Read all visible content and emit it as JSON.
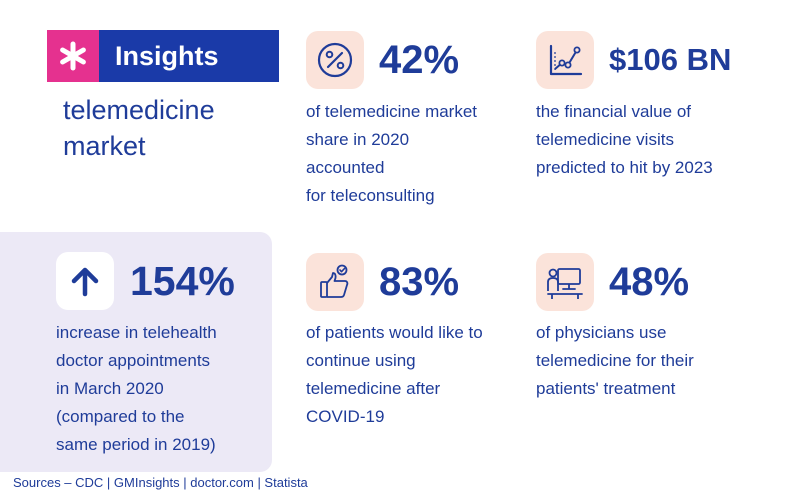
{
  "header": {
    "badge_label": "Insights",
    "subtitle": "telemedicine market"
  },
  "colors": {
    "primary": "#1a3aa8",
    "accent_pink": "#e5318f",
    "icon_bg": "#fbe3da",
    "highlight_card": "#ece9f6"
  },
  "stats": [
    {
      "icon": "percent-icon",
      "value": "42%",
      "description": "of telemedicine market\nshare in 2020\naccounted\nfor teleconsulting"
    },
    {
      "icon": "growth-chart-icon",
      "value": "$106 BN",
      "description": "the financial value of\ntelemedicine visits\npredicted to hit by 2023"
    },
    {
      "icon": "arrow-up-icon",
      "value": "154%",
      "description": "increase in telehealth\ndoctor appointments\nin March 2020\n(compared to the\nsame period in 2019)"
    },
    {
      "icon": "thumbs-up-icon",
      "value": "83%",
      "description": "of patients would like to\ncontinue using\ntelemedicine after\nCOVID-19"
    },
    {
      "icon": "telemedicine-screen-icon",
      "value": "48%",
      "description": "of physicians use\ntelemedicine for their\npatients' treatment"
    }
  ],
  "sources": "Sources  –  CDC | GMInsights | doctor.com | Statista"
}
